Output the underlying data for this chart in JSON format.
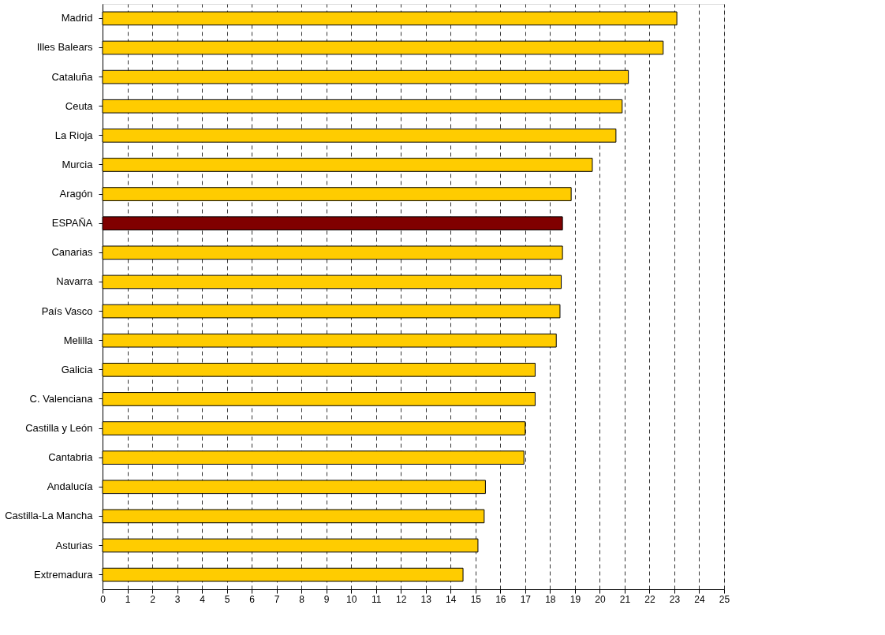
{
  "chart_data": {
    "type": "bar",
    "orientation": "horizontal",
    "categories": [
      "Madrid",
      "Illes Balears",
      "Cataluña",
      "Ceuta",
      "La Rioja",
      "Murcia",
      "Aragón",
      "ESPAÑA",
      "Canarias",
      "Navarra",
      "País Vasco",
      "Melilla",
      "Galicia",
      "C. Valenciana",
      "Castilla y León",
      "Cantabria",
      "Andalucía",
      "Castilla-La Mancha",
      "Asturias",
      "Extremadura"
    ],
    "values": [
      23.1,
      22.55,
      21.15,
      20.9,
      20.65,
      19.7,
      18.85,
      18.5,
      18.5,
      18.45,
      18.4,
      18.25,
      17.4,
      17.4,
      17.0,
      16.95,
      15.4,
      15.35,
      15.1,
      14.5
    ],
    "colors": [
      "#ffcc00",
      "#ffcc00",
      "#ffcc00",
      "#ffcc00",
      "#ffcc00",
      "#ffcc00",
      "#ffcc00",
      "#800000",
      "#ffcc00",
      "#ffcc00",
      "#ffcc00",
      "#ffcc00",
      "#ffcc00",
      "#ffcc00",
      "#ffcc00",
      "#ffcc00",
      "#ffcc00",
      "#ffcc00",
      "#ffcc00",
      "#ffcc00"
    ],
    "xlim": [
      0,
      25
    ],
    "xticks": [
      0,
      1,
      2,
      3,
      4,
      5,
      6,
      7,
      8,
      9,
      10,
      11,
      12,
      13,
      14,
      15,
      16,
      17,
      18,
      19,
      20,
      21,
      22,
      23,
      24,
      25
    ],
    "grid": "x"
  }
}
